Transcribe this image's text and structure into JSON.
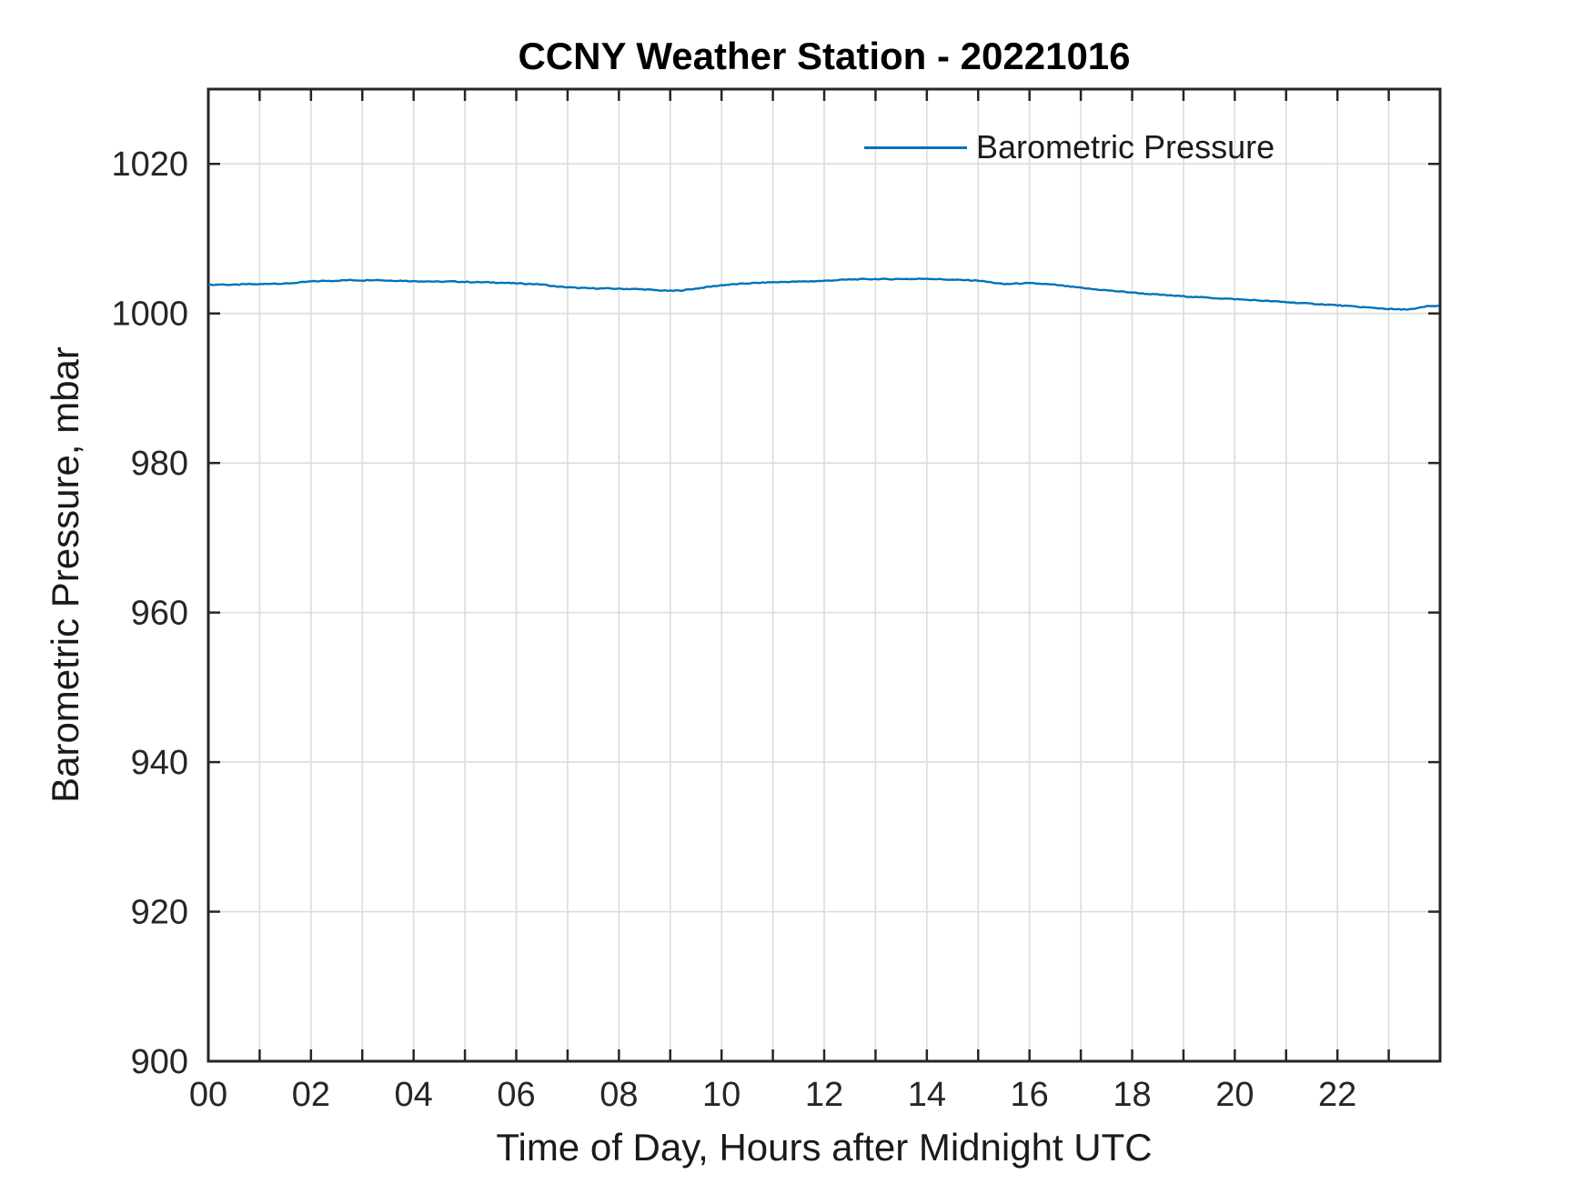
{
  "figure": {
    "background": "#ffffff"
  },
  "chart_data": {
    "type": "line",
    "title": "CCNY Weather Station - 20221016",
    "xlabel": "Time of Day, Hours after Midnight UTC",
    "ylabel": "Barometric Pressure, mbar",
    "grid": true,
    "legend_position": "top-right-inside",
    "legend_box": false,
    "xlim": [
      0,
      24
    ],
    "ylim": [
      900,
      1030
    ],
    "x_ticks": [
      0,
      1,
      2,
      3,
      4,
      5,
      6,
      7,
      8,
      9,
      10,
      11,
      12,
      13,
      14,
      15,
      16,
      17,
      18,
      19,
      20,
      21,
      22,
      23,
      24
    ],
    "x_tick_labels": [
      {
        "v": 0,
        "t": "00"
      },
      {
        "v": 2,
        "t": "02"
      },
      {
        "v": 4,
        "t": "04"
      },
      {
        "v": 6,
        "t": "06"
      },
      {
        "v": 8,
        "t": "08"
      },
      {
        "v": 10,
        "t": "10"
      },
      {
        "v": 12,
        "t": "12"
      },
      {
        "v": 14,
        "t": "14"
      },
      {
        "v": 16,
        "t": "16"
      },
      {
        "v": 18,
        "t": "18"
      },
      {
        "v": 20,
        "t": "20"
      },
      {
        "v": 22,
        "t": "22"
      }
    ],
    "y_ticks": [
      900,
      920,
      940,
      960,
      980,
      1000,
      1020
    ],
    "axis_color": "#262626",
    "grid_color": "#dcdcdc",
    "noise_amplitude": 0.06,
    "series": [
      {
        "name": "Barometric Pressure",
        "color": "#0072BD",
        "x": [
          0,
          0.25,
          0.5,
          0.75,
          1,
          1.25,
          1.5,
          1.75,
          2,
          2.25,
          2.5,
          2.75,
          3,
          3.25,
          3.5,
          3.75,
          4,
          4.25,
          4.5,
          4.75,
          5,
          5.25,
          5.5,
          5.75,
          6,
          6.25,
          6.5,
          6.75,
          7,
          7.25,
          7.5,
          7.75,
          8,
          8.25,
          8.5,
          8.75,
          9,
          9.25,
          9.5,
          9.75,
          10,
          10.25,
          10.5,
          10.75,
          11,
          11.25,
          11.5,
          11.75,
          12,
          12.25,
          12.5,
          12.75,
          13,
          13.25,
          13.5,
          13.75,
          14,
          14.25,
          14.5,
          14.75,
          15,
          15.25,
          15.5,
          15.75,
          16,
          16.25,
          16.5,
          16.75,
          17,
          17.25,
          17.5,
          17.75,
          18,
          18.25,
          18.5,
          18.75,
          19,
          19.25,
          19.5,
          19.75,
          20,
          20.25,
          20.5,
          20.75,
          21,
          21.25,
          21.5,
          21.75,
          22,
          22.25,
          22.5,
          22.75,
          23,
          23.25,
          23.5,
          23.75,
          23.97
        ],
        "y": [
          1003.8,
          1003.88,
          1003.82,
          1003.92,
          1003.9,
          1004.0,
          1003.98,
          1004.12,
          1004.28,
          1004.35,
          1004.38,
          1004.46,
          1004.42,
          1004.5,
          1004.4,
          1004.38,
          1004.32,
          1004.3,
          1004.24,
          1004.28,
          1004.22,
          1004.18,
          1004.16,
          1004.1,
          1004.02,
          1003.96,
          1003.88,
          1003.62,
          1003.5,
          1003.4,
          1003.36,
          1003.34,
          1003.3,
          1003.28,
          1003.22,
          1003.1,
          1003.02,
          1003.1,
          1003.32,
          1003.56,
          1003.78,
          1003.9,
          1004.02,
          1004.1,
          1004.18,
          1004.22,
          1004.26,
          1004.3,
          1004.36,
          1004.46,
          1004.54,
          1004.58,
          1004.6,
          1004.58,
          1004.62,
          1004.6,
          1004.66,
          1004.58,
          1004.5,
          1004.46,
          1004.4,
          1004.16,
          1003.92,
          1004.0,
          1004.04,
          1003.96,
          1003.82,
          1003.62,
          1003.42,
          1003.24,
          1003.1,
          1002.94,
          1002.8,
          1002.64,
          1002.52,
          1002.4,
          1002.3,
          1002.2,
          1002.1,
          1002.0,
          1001.92,
          1001.82,
          1001.72,
          1001.62,
          1001.52,
          1001.4,
          1001.3,
          1001.2,
          1001.1,
          1000.96,
          1000.84,
          1000.72,
          1000.6,
          1000.52,
          1000.6,
          1000.96,
          1001.02
        ]
      }
    ]
  }
}
